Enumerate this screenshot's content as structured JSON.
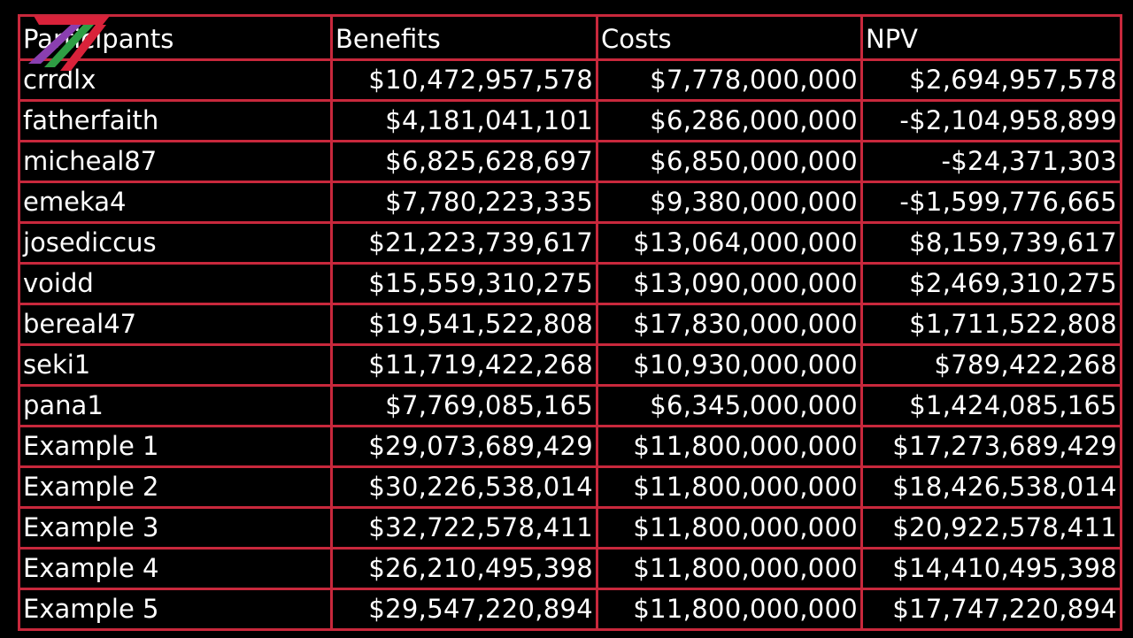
{
  "table": {
    "headers": [
      "Participants",
      "Benefits",
      "Costs",
      "NPV"
    ],
    "rows": [
      {
        "participant": "crrdlx",
        "benefits": "$10,472,957,578",
        "costs": "$7,778,000,000",
        "npv": "$2,694,957,578"
      },
      {
        "participant": "fatherfaith",
        "benefits": "$4,181,041,101",
        "costs": "$6,286,000,000",
        "npv": "-$2,104,958,899"
      },
      {
        "participant": "micheal87",
        "benefits": "$6,825,628,697",
        "costs": "$6,850,000,000",
        "npv": "-$24,371,303"
      },
      {
        "participant": "emeka4",
        "benefits": "$7,780,223,335",
        "costs": "$9,380,000,000",
        "npv": "-$1,599,776,665"
      },
      {
        "participant": "josediccus",
        "benefits": "$21,223,739,617",
        "costs": "$13,064,000,000",
        "npv": "$8,159,739,617"
      },
      {
        "participant": "voidd",
        "benefits": "$15,559,310,275",
        "costs": "$13,090,000,000",
        "npv": "$2,469,310,275"
      },
      {
        "participant": "bereal47",
        "benefits": "$19,541,522,808",
        "costs": "$17,830,000,000",
        "npv": "$1,711,522,808"
      },
      {
        "participant": "seki1",
        "benefits": "$11,719,422,268",
        "costs": "$10,930,000,000",
        "npv": "$789,422,268"
      },
      {
        "participant": "pana1",
        "benefits": "$7,769,085,165",
        "costs": "$6,345,000,000",
        "npv": "$1,424,085,165"
      },
      {
        "participant": "Example 1",
        "benefits": "$29,073,689,429",
        "costs": "$11,800,000,000",
        "npv": "$17,273,689,429"
      },
      {
        "participant": "Example 2",
        "benefits": "$30,226,538,014",
        "costs": "$11,800,000,000",
        "npv": "$18,426,538,014"
      },
      {
        "participant": "Example 3",
        "benefits": "$32,722,578,411",
        "costs": "$11,800,000,000",
        "npv": "$20,922,578,411"
      },
      {
        "participant": "Example 4",
        "benefits": "$26,210,495,398",
        "costs": "$11,800,000,000",
        "npv": "$14,410,495,398"
      },
      {
        "participant": "Example 5",
        "benefits": "$29,547,220,894",
        "costs": "$11,800,000,000",
        "npv": "$17,747,220,894"
      }
    ]
  },
  "logo": {
    "icon": "stylized-seven-logo-icon",
    "colors": [
      "#d9223a",
      "#2e9e44",
      "#8a3fb0"
    ]
  },
  "colors": {
    "background": "#000000",
    "grid": "#c8283c",
    "text": "#ffffff"
  }
}
